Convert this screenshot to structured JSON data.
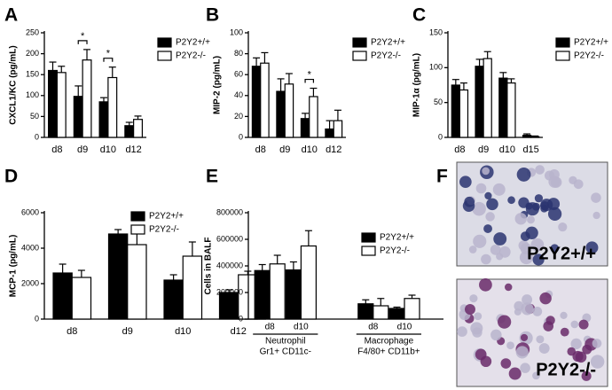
{
  "chart_data": [
    {
      "type": "bar",
      "panel": "A",
      "ylabel": "CXCL1/KC (pg/mL)",
      "categories": [
        "d8",
        "d9",
        "d10",
        "d12"
      ],
      "series": [
        {
          "name": "P2Y2+/+",
          "color": "#000000",
          "values": [
            160,
            98,
            85,
            28
          ],
          "errors": [
            20,
            25,
            10,
            8
          ]
        },
        {
          "name": "P2Y2-/-",
          "color": "#ffffff",
          "values": [
            155,
            185,
            143,
            43
          ],
          "errors": [
            15,
            25,
            25,
            8
          ]
        }
      ],
      "significance": [
        null,
        "*",
        "*",
        null
      ],
      "ylim": [
        0,
        250
      ],
      "yticks": [
        0,
        50,
        100,
        150,
        200,
        250
      ]
    },
    {
      "type": "bar",
      "panel": "B",
      "ylabel": "MIP-2 (pg/mL)",
      "categories": [
        "d8",
        "d9",
        "d10",
        "d12"
      ],
      "series": [
        {
          "name": "P2Y2+/+",
          "color": "#000000",
          "values": [
            68,
            44,
            18,
            8
          ],
          "errors": [
            8,
            12,
            5,
            8
          ]
        },
        {
          "name": "P2Y2-/-",
          "color": "#ffffff",
          "values": [
            71,
            51,
            39,
            16
          ],
          "errors": [
            10,
            10,
            8,
            10
          ]
        }
      ],
      "significance": [
        null,
        null,
        "*",
        null
      ],
      "ylim": [
        0,
        100
      ],
      "yticks": [
        0,
        20,
        40,
        60,
        80,
        100
      ]
    },
    {
      "type": "bar",
      "panel": "C",
      "ylabel": "MIP-1α (pg/mL)",
      "categories": [
        "d8",
        "d9",
        "d10",
        "d15"
      ],
      "series": [
        {
          "name": "P2Y2+/+",
          "color": "#000000",
          "values": [
            75,
            102,
            85,
            3
          ],
          "errors": [
            8,
            10,
            8,
            2
          ]
        },
        {
          "name": "P2Y2-/-",
          "color": "#ffffff",
          "values": [
            68,
            113,
            78,
            1
          ],
          "errors": [
            10,
            10,
            6,
            1
          ]
        }
      ],
      "ylim": [
        0,
        150
      ],
      "yticks": [
        0,
        50,
        100,
        150
      ]
    },
    {
      "type": "bar",
      "panel": "D",
      "ylabel": "MCP-1 (pg/mL)",
      "categories": [
        "d8",
        "d9",
        "d10",
        "d12"
      ],
      "series": [
        {
          "name": "P2Y2+/+",
          "color": "#000000",
          "values": [
            2600,
            4800,
            2200,
            1500
          ],
          "errors": [
            500,
            250,
            300,
            150
          ]
        },
        {
          "name": "P2Y2-/-",
          "color": "#ffffff",
          "values": [
            2350,
            4200,
            3550,
            2500
          ],
          "errors": [
            400,
            800,
            800,
            200
          ]
        }
      ],
      "ylim": [
        0,
        6000
      ],
      "yticks": [
        0,
        2000,
        4000,
        6000
      ]
    },
    {
      "type": "bar",
      "panel": "E",
      "ylabel": "Cells in BALF",
      "categories": [
        "d8",
        "d10",
        "d8",
        "d10"
      ],
      "groups": [
        {
          "label": "Neutrophil",
          "sublabel": "Gr1+ CD11c-"
        },
        {
          "label": "Macrophage",
          "sublabel": "F4/80+ CD11b+"
        }
      ],
      "series": [
        {
          "name": "P2Y2+/+",
          "color": "#000000",
          "values": [
            365000,
            370000,
            115000,
            80000
          ],
          "errors": [
            45000,
            60000,
            30000,
            10000
          ]
        },
        {
          "name": "P2Y2-/-",
          "color": "#ffffff",
          "values": [
            415000,
            550000,
            100000,
            155000
          ],
          "errors": [
            65000,
            115000,
            55000,
            25000
          ]
        }
      ],
      "ylim": [
        0,
        800000
      ],
      "yticks": [
        0,
        200000,
        400000,
        600000,
        800000
      ]
    }
  ],
  "image_panel": {
    "panel": "F",
    "images": [
      {
        "label": "P2Y2+/+"
      },
      {
        "label": "P2Y2-/-"
      }
    ]
  }
}
